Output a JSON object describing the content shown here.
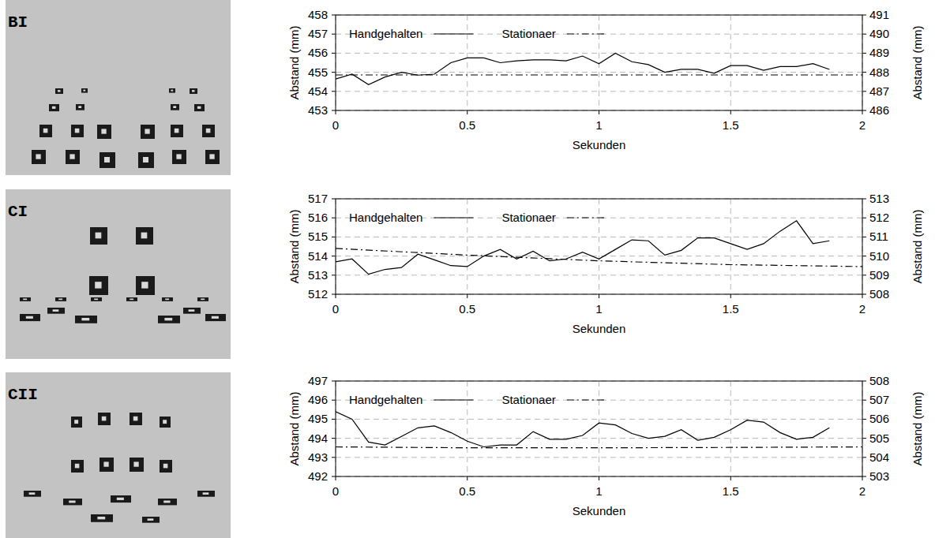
{
  "chart_data": [
    {
      "type": "line",
      "title": "BI",
      "x_label": "Sekunden",
      "y_label": "Abstand (mm)",
      "y2_label": "Abstand (mm)",
      "xlim": [
        0,
        2
      ],
      "xticks": [
        0,
        0.5,
        1,
        1.5,
        2
      ],
      "ylim": [
        453,
        458
      ],
      "yticks": [
        453,
        454,
        455,
        456,
        457,
        458
      ],
      "y2lim": [
        486,
        491
      ],
      "y2ticks": [
        486,
        487,
        488,
        489,
        490,
        491
      ],
      "grid": true,
      "legend": "top",
      "series": [
        {
          "name": "Handgehalten",
          "color": "#000000",
          "line_style": "solid",
          "x": [
            0,
            0.0625,
            0.125,
            0.1875,
            0.25,
            0.3125,
            0.375,
            0.4375,
            0.5,
            0.5625,
            0.625,
            0.6875,
            0.75,
            0.8125,
            0.875,
            0.9375,
            1,
            1.0625,
            1.125,
            1.1875,
            1.25,
            1.3125,
            1.375,
            1.4375,
            1.5,
            1.5625,
            1.625,
            1.6875,
            1.75,
            1.8125,
            1.875
          ],
          "values": [
            454.65,
            454.9,
            454.35,
            454.75,
            455.0,
            454.85,
            454.9,
            455.5,
            455.75,
            455.75,
            455.5,
            455.6,
            455.65,
            455.65,
            455.6,
            455.85,
            455.45,
            456.0,
            455.55,
            455.4,
            455.0,
            455.15,
            455.15,
            454.95,
            455.35,
            455.35,
            455.1,
            455.3,
            455.3,
            455.45,
            455.15
          ]
        },
        {
          "name": "Stationaer",
          "color": "#000000",
          "line_style": "dashdot",
          "axis": "y2",
          "x": [
            0,
            0.5,
            1,
            1.5,
            2
          ],
          "values": [
            487.86,
            487.86,
            487.86,
            487.86,
            487.86
          ]
        }
      ]
    },
    {
      "type": "line",
      "title": "CI",
      "x_label": "Sekunden",
      "y_label": "Abstand (mm)",
      "y2_label": "Abstand (mm)",
      "xlim": [
        0,
        2
      ],
      "xticks": [
        0,
        0.5,
        1,
        1.5,
        2
      ],
      "ylim": [
        512,
        517
      ],
      "yticks": [
        512,
        513,
        514,
        515,
        516,
        517
      ],
      "y2lim": [
        508,
        513
      ],
      "y2ticks": [
        508,
        509,
        510,
        511,
        512,
        513
      ],
      "grid": true,
      "legend": "top",
      "series": [
        {
          "name": "Handgehalten",
          "color": "#000000",
          "line_style": "solid",
          "x": [
            0,
            0.0625,
            0.125,
            0.1875,
            0.25,
            0.3125,
            0.375,
            0.4375,
            0.5,
            0.5625,
            0.625,
            0.6875,
            0.75,
            0.8125,
            0.875,
            0.9375,
            1,
            1.0625,
            1.125,
            1.1875,
            1.25,
            1.3125,
            1.375,
            1.4375,
            1.5,
            1.5625,
            1.625,
            1.6875,
            1.75,
            1.8125,
            1.875
          ],
          "values": [
            513.7,
            513.85,
            513.05,
            513.3,
            513.4,
            514.1,
            513.8,
            513.5,
            513.45,
            514.0,
            514.35,
            513.85,
            514.25,
            513.75,
            513.85,
            514.2,
            513.85,
            514.35,
            514.85,
            514.8,
            514.05,
            514.3,
            514.95,
            514.95,
            514.65,
            514.35,
            514.65,
            515.3,
            515.85,
            514.65,
            514.8
          ]
        },
        {
          "name": "Stationaer",
          "color": "#000000",
          "line_style": "dashdot",
          "axis": "y2",
          "x": [
            0,
            0.5,
            1,
            1.5,
            2
          ],
          "values": [
            510.4,
            510.05,
            509.75,
            509.55,
            509.45
          ]
        }
      ]
    },
    {
      "type": "line",
      "title": "CII",
      "x_label": "Sekunden",
      "y_label": "Abstand (mm)",
      "y2_label": "Abstand (mm)",
      "xlim": [
        0,
        2
      ],
      "xticks": [
        0,
        0.5,
        1,
        1.5,
        2
      ],
      "ylim": [
        492,
        497
      ],
      "yticks": [
        492,
        493,
        494,
        495,
        496,
        497
      ],
      "y2lim": [
        503,
        508
      ],
      "y2ticks": [
        503,
        504,
        505,
        506,
        507,
        508
      ],
      "grid": true,
      "legend": "top",
      "series": [
        {
          "name": "Handgehalten",
          "color": "#000000",
          "line_style": "solid",
          "x": [
            0,
            0.0625,
            0.125,
            0.1875,
            0.25,
            0.3125,
            0.375,
            0.4375,
            0.5,
            0.5625,
            0.625,
            0.6875,
            0.75,
            0.8125,
            0.875,
            0.9375,
            1,
            1.0625,
            1.125,
            1.1875,
            1.25,
            1.3125,
            1.375,
            1.4375,
            1.5,
            1.5625,
            1.625,
            1.6875,
            1.75,
            1.8125,
            1.875
          ],
          "values": [
            495.4,
            495.0,
            493.8,
            493.65,
            494.1,
            494.55,
            494.65,
            494.3,
            493.85,
            493.55,
            493.65,
            493.65,
            494.35,
            493.95,
            493.95,
            494.15,
            494.8,
            494.7,
            494.25,
            494.0,
            494.1,
            494.45,
            493.9,
            494.05,
            494.45,
            494.95,
            494.85,
            494.3,
            493.95,
            494.05,
            494.55
          ]
        },
        {
          "name": "Stationaer",
          "color": "#000000",
          "line_style": "dashdot",
          "axis": "y2",
          "x": [
            0,
            0.5,
            1,
            1.5,
            2
          ],
          "values": [
            504.55,
            504.5,
            504.5,
            504.52,
            504.55
          ]
        }
      ]
    }
  ]
}
